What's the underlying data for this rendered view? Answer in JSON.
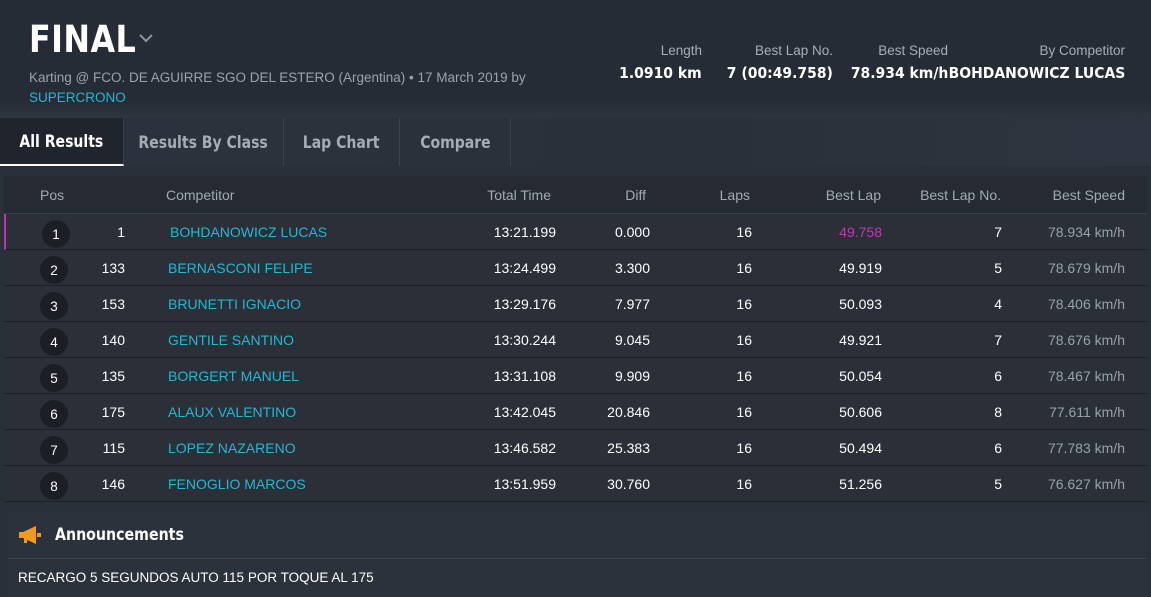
{
  "event": {
    "title": "FINAL",
    "subtitle_prefix": "Karting @ FCO. DE AGUIRRE SGO DEL ESTERO (Argentina) • 17 March 2019 by",
    "organizer": "SUPERCRONO"
  },
  "stats": [
    {
      "label": "Length",
      "value": "1.0910 km"
    },
    {
      "label": "Best Lap No.",
      "value": "7 (00:49.758)"
    },
    {
      "label": "Best Speed",
      "value": "78.934 km/h"
    },
    {
      "label": "By Competitor",
      "value": "BOHDANOWICZ LUCAS"
    }
  ],
  "tabs": [
    {
      "label": "All Results",
      "active": true
    },
    {
      "label": "Results By Class",
      "active": false
    },
    {
      "label": "Lap Chart",
      "active": false
    },
    {
      "label": "Compare",
      "active": false
    }
  ],
  "columns": {
    "pos": "Pos",
    "competitor": "Competitor",
    "total_time": "Total Time",
    "diff": "Diff",
    "laps": "Laps",
    "best_lap": "Best Lap",
    "best_lap_no": "Best Lap No.",
    "best_speed": "Best Speed"
  },
  "results": [
    {
      "pos": "1",
      "num": "1",
      "name": "BOHDANOWICZ LUCAS",
      "total": "13:21.199",
      "diff": "0.000",
      "laps": "16",
      "best_lap": "49.758",
      "best_lap_no": "7",
      "best_speed": "78.934 km/h"
    },
    {
      "pos": "2",
      "num": "133",
      "name": "BERNASCONI FELIPE",
      "total": "13:24.499",
      "diff": "3.300",
      "laps": "16",
      "best_lap": "49.919",
      "best_lap_no": "5",
      "best_speed": "78.679 km/h"
    },
    {
      "pos": "3",
      "num": "153",
      "name": "BRUNETTI IGNACIO",
      "total": "13:29.176",
      "diff": "7.977",
      "laps": "16",
      "best_lap": "50.093",
      "best_lap_no": "4",
      "best_speed": "78.406 km/h"
    },
    {
      "pos": "4",
      "num": "140",
      "name": "GENTILE SANTINO",
      "total": "13:30.244",
      "diff": "9.045",
      "laps": "16",
      "best_lap": "49.921",
      "best_lap_no": "7",
      "best_speed": "78.676 km/h"
    },
    {
      "pos": "5",
      "num": "135",
      "name": "BORGERT MANUEL",
      "total": "13:31.108",
      "diff": "9.909",
      "laps": "16",
      "best_lap": "50.054",
      "best_lap_no": "6",
      "best_speed": "78.467 km/h"
    },
    {
      "pos": "6",
      "num": "175",
      "name": "ALAUX VALENTINO",
      "total": "13:42.045",
      "diff": "20.846",
      "laps": "16",
      "best_lap": "50.606",
      "best_lap_no": "8",
      "best_speed": "77.611 km/h"
    },
    {
      "pos": "7",
      "num": "115",
      "name": "LOPEZ NAZARENO",
      "total": "13:46.582",
      "diff": "25.383",
      "laps": "16",
      "best_lap": "50.494",
      "best_lap_no": "6",
      "best_speed": "77.783 km/h"
    },
    {
      "pos": "8",
      "num": "146",
      "name": "FENOGLIO MARCOS",
      "total": "13:51.959",
      "diff": "30.760",
      "laps": "16",
      "best_lap": "51.256",
      "best_lap_no": "5",
      "best_speed": "76.627 km/h"
    }
  ],
  "announcements": {
    "title": "Announcements",
    "icon": "megaphone-icon",
    "text": "RECARGO 5 SEGUNDOS AUTO 115 POR TOQUE AL 175"
  },
  "colors": {
    "accent": "#25b7d3",
    "best_lap_highlight": "#c733b6",
    "announcement_icon": "#f29a1f"
  }
}
